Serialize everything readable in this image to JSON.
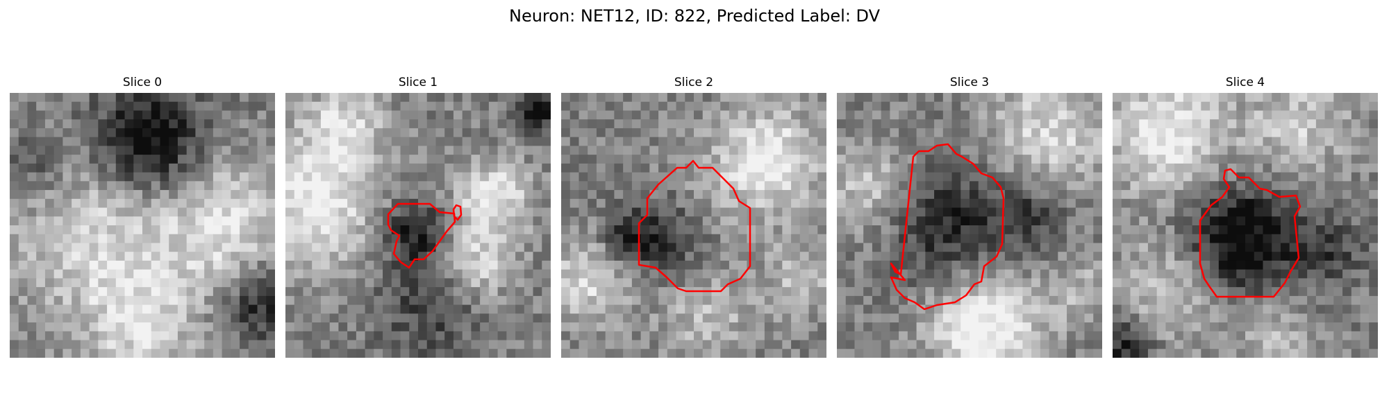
{
  "figure": {
    "title": "Neuron: NET12, ID: 822, Predicted Label: DV"
  },
  "panels": [
    {
      "title": "Slice 0",
      "has_contour": false
    },
    {
      "title": "Slice 1",
      "has_contour": true
    },
    {
      "title": "Slice 2",
      "has_contour": true
    },
    {
      "title": "Slice 3",
      "has_contour": true
    },
    {
      "title": "Slice 4",
      "has_contour": true
    }
  ],
  "colors": {
    "contour": "#ff0000",
    "background": "#ffffff"
  }
}
